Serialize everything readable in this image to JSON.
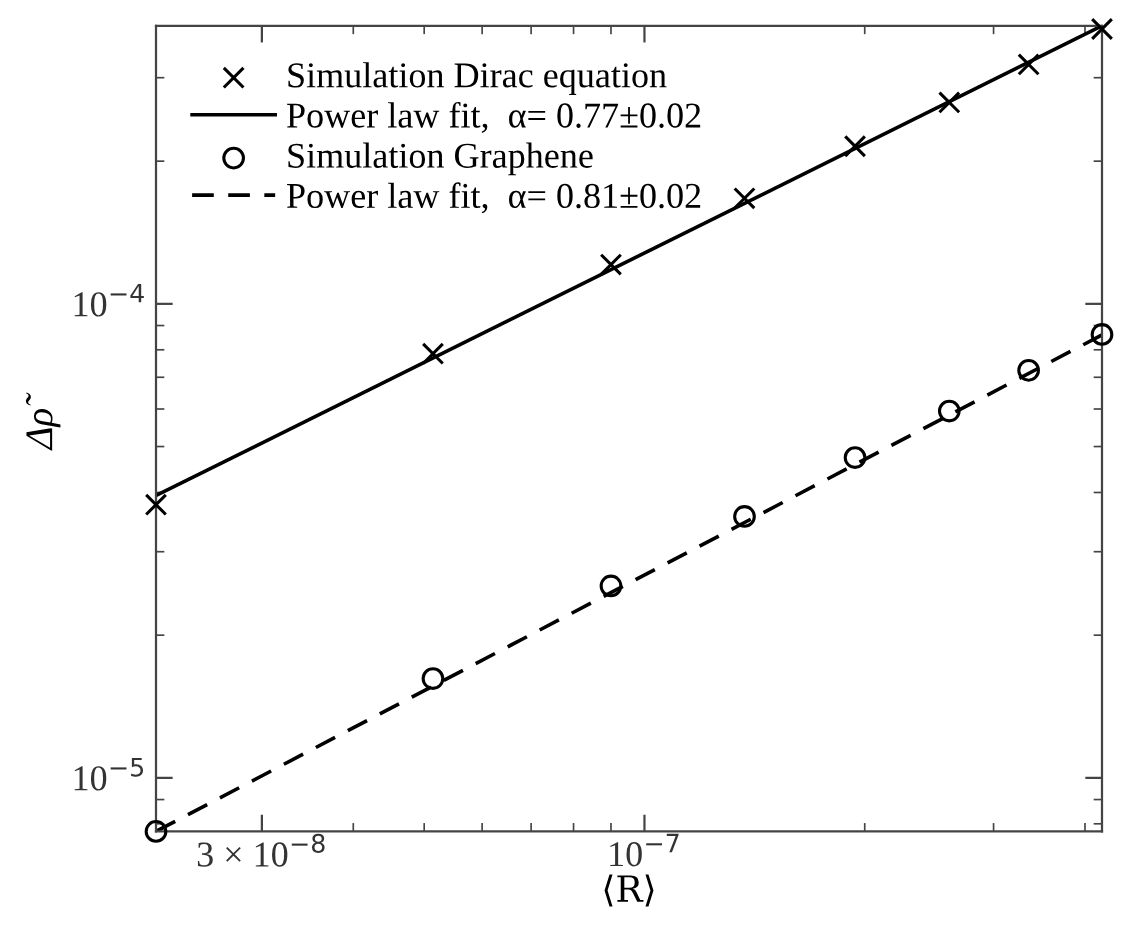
{
  "chart_data": {
    "type": "scatter",
    "xlabel": "⟨R⟩",
    "ylabel": "Δρ̃",
    "log": "xy",
    "grid": false,
    "legend": "top left",
    "xlim": [
      2.15e-08,
      4.22e-07
    ],
    "ylim": [
      7.71e-06,
      0.000386
    ],
    "xticks": [
      {
        "value": 3e-08,
        "label": "3 × 10$^{−8}$"
      },
      {
        "value": 1e-07,
        "label": "10$^{−7}$"
      }
    ],
    "yticks": [
      {
        "value": 1e-05,
        "label": "10$^{−5}$"
      },
      {
        "value": 0.0001,
        "label": "10$^{−4}$"
      }
    ],
    "series": [
      {
        "name": "Simulation Dirac equation",
        "marker": "cross",
        "color": "#000000",
        "x": [
          2.15e-08,
          5.14e-08,
          9e-08,
          1.37e-07,
          1.94e-07,
          2.61e-07,
          3.35e-07,
          4.22e-07
        ],
        "values": [
          3.77e-05,
          7.85e-05,
          0.000121,
          0.000167,
          0.000215,
          0.000266,
          0.00032,
          0.00038
        ]
      },
      {
        "name": "Power law fit,  α= 0.77±0.02",
        "type": "line",
        "line_style": "solid",
        "color": "#000000",
        "x": [
          2.15e-08,
          4.22e-07
        ],
        "values": [
          3.94e-05,
          0.000386
        ]
      },
      {
        "name": "Simulation Graphene",
        "marker": "circle",
        "color": "#000000",
        "x": [
          2.15e-08,
          5.14e-08,
          9e-08,
          1.37e-07,
          1.94e-07,
          2.61e-07,
          3.35e-07,
          4.22e-07
        ],
        "values": [
          7.71e-06,
          1.62e-05,
          2.54e-05,
          3.56e-05,
          4.74e-05,
          5.94e-05,
          7.24e-05,
          8.62e-05
        ]
      },
      {
        "name": "Power law fit,  α= 0.81±0.02",
        "type": "line",
        "line_style": "dashed",
        "color": "#000000",
        "x": [
          2.15e-08,
          4.22e-07
        ],
        "values": [
          7.71e-06,
          8.6e-05
        ]
      }
    ]
  }
}
